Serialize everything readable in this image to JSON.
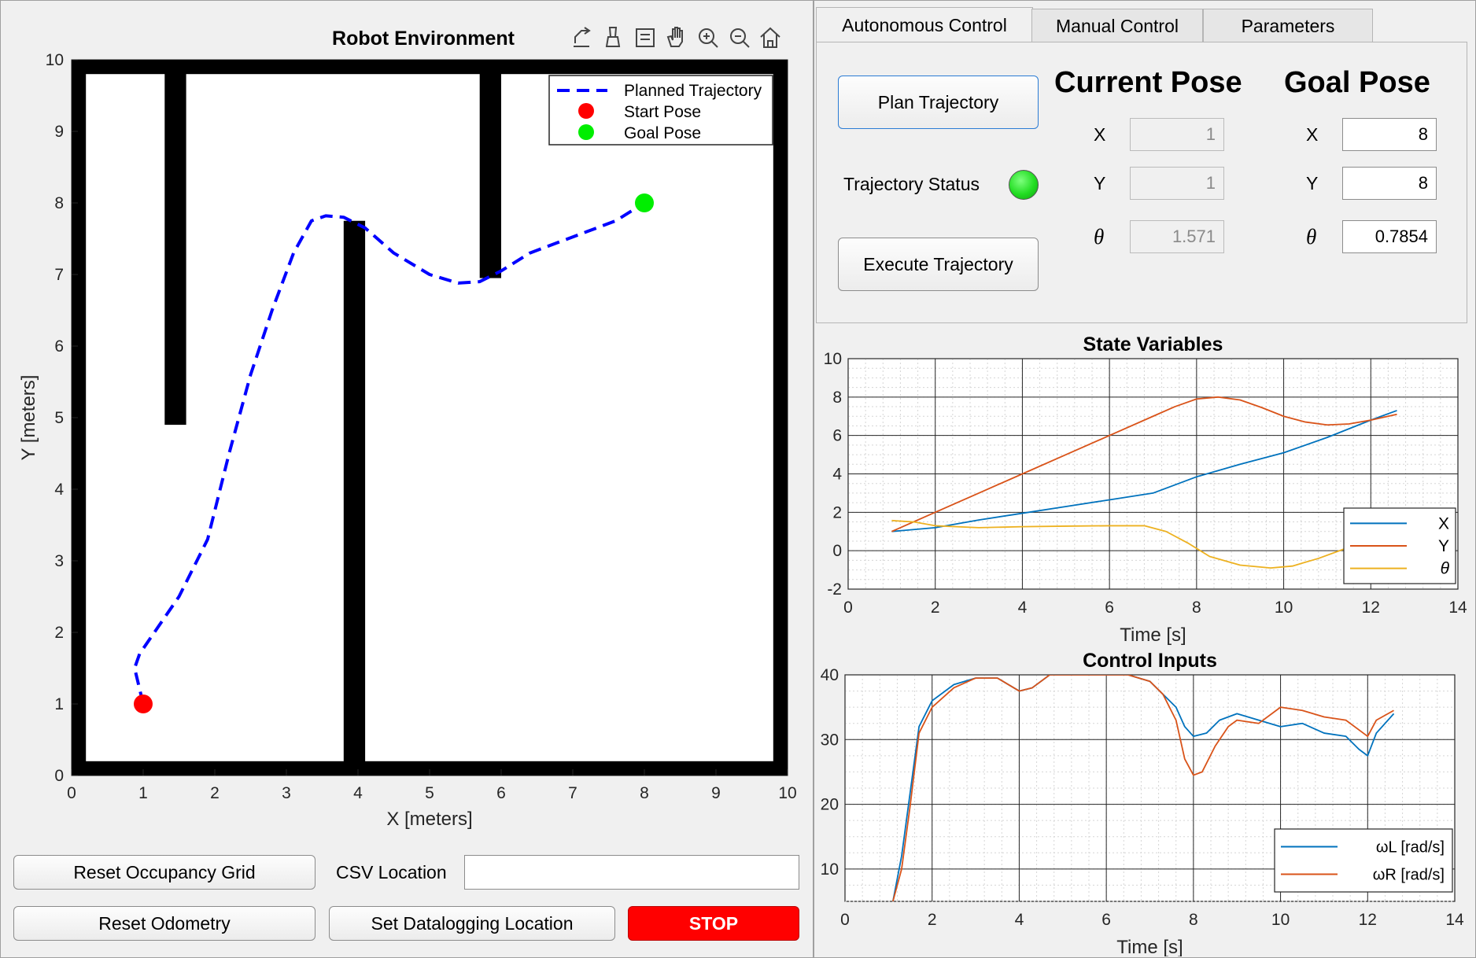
{
  "environment": {
    "title": "Robot Environment",
    "xlabel": "X [meters]",
    "ylabel": "Y [meters]",
    "legend": [
      "Planned Trajectory",
      "Start Pose",
      "Goal Pose"
    ],
    "toolbar_icons": [
      "export-icon",
      "brush-icon",
      "data-tips-icon",
      "pan-icon",
      "zoom-in-icon",
      "zoom-out-icon",
      "home-icon"
    ]
  },
  "left_controls": {
    "reset_grid": "Reset Occupancy Grid",
    "csv_label": "CSV Location",
    "csv_value": "",
    "reset_odometry": "Reset Odometry",
    "set_datalogging": "Set Datalogging Location",
    "stop": "STOP"
  },
  "tabs": [
    "Autonomous Control",
    "Manual Control",
    "Parameters"
  ],
  "autonomous": {
    "plan_button": "Plan Trajectory",
    "execute_button": "Execute Trajectory",
    "status_label": "Trajectory Status",
    "status_color": "#22dd22",
    "current_heading": "Current Pose",
    "goal_heading": "Goal Pose",
    "labels": {
      "x": "X",
      "y": "Y",
      "theta": "θ"
    },
    "current": {
      "x": "1",
      "y": "1",
      "theta": "1.571"
    },
    "goal": {
      "x": "8",
      "y": "8",
      "theta": "0.7854"
    }
  },
  "chart_data": [
    {
      "type": "line",
      "title": "Robot Environment",
      "xlabel": "X [meters]",
      "ylabel": "Y [meters]",
      "xlim": [
        0,
        10
      ],
      "ylim": [
        0,
        10
      ],
      "xticks": [
        "0",
        "1",
        "2",
        "3",
        "4",
        "5",
        "6",
        "7",
        "8",
        "9",
        "10"
      ],
      "yticks": [
        "0",
        "1",
        "2",
        "3",
        "4",
        "5",
        "6",
        "7",
        "8",
        "9",
        "10"
      ],
      "legend_position": "top-right",
      "obstacles": [
        {
          "x": [
            0,
            10
          ],
          "y": [
            9.8,
            10
          ]
        },
        {
          "x": [
            0,
            10
          ],
          "y": [
            0,
            0.2
          ]
        },
        {
          "x": [
            0,
            0.2
          ],
          "y": [
            0,
            10
          ]
        },
        {
          "x": [
            9.8,
            10
          ],
          "y": [
            0,
            10
          ]
        },
        {
          "x": [
            1.3,
            1.6
          ],
          "y": [
            4.9,
            10
          ]
        },
        {
          "x": [
            3.8,
            4.1
          ],
          "y": [
            0,
            7.75
          ]
        },
        {
          "x": [
            5.7,
            6.0
          ],
          "y": [
            6.95,
            10
          ]
        }
      ],
      "series": [
        {
          "name": "Planned Trajectory",
          "color": "#0000ff",
          "x": [
            1.0,
            0.88,
            0.95,
            1.5,
            1.9,
            2.2,
            2.5,
            2.8,
            3.1,
            3.35,
            3.55,
            3.8,
            4.1,
            4.5,
            5.0,
            5.4,
            5.7,
            6.0,
            6.4,
            6.8,
            7.2,
            7.6,
            8.0
          ],
          "y": [
            1.0,
            1.5,
            1.7,
            2.5,
            3.3,
            4.5,
            5.6,
            6.5,
            7.3,
            7.75,
            7.82,
            7.8,
            7.65,
            7.3,
            7.0,
            6.88,
            6.9,
            7.05,
            7.3,
            7.45,
            7.6,
            7.75,
            8.0
          ]
        },
        {
          "name": "Start Pose",
          "color": "#ff0000",
          "x": [
            1.0
          ],
          "y": [
            1.0
          ]
        },
        {
          "name": "Goal Pose",
          "color": "#00ee00",
          "x": [
            8.0
          ],
          "y": [
            8.0
          ]
        }
      ]
    },
    {
      "type": "line",
      "title": "State Variables",
      "xlabel": "Time [s]",
      "ylabel": "",
      "xlim": [
        0,
        14
      ],
      "ylim": [
        -2,
        10
      ],
      "xticks": [
        "0",
        "2",
        "4",
        "6",
        "8",
        "10",
        "12",
        "14"
      ],
      "yticks": [
        "-2",
        "0",
        "2",
        "4",
        "6",
        "8",
        "10"
      ],
      "grid": true,
      "legend_position": "bottom-right",
      "series": [
        {
          "name": "X",
          "color": "#0072bd",
          "x": [
            1.0,
            2.0,
            3.0,
            4.0,
            5.0,
            6.0,
            7.0,
            8.0,
            9.0,
            10.0,
            11.0,
            12.0,
            12.6
          ],
          "y": [
            1.0,
            1.2,
            1.6,
            1.95,
            2.3,
            2.65,
            3.0,
            3.85,
            4.5,
            5.1,
            5.9,
            6.8,
            7.3
          ]
        },
        {
          "name": "Y",
          "color": "#d95319",
          "x": [
            1.0,
            2.0,
            3.0,
            4.0,
            5.0,
            6.0,
            7.0,
            7.5,
            8.0,
            8.5,
            9.0,
            9.5,
            10.0,
            10.5,
            11.0,
            11.5,
            12.0,
            12.6
          ],
          "y": [
            1.0,
            2.0,
            3.0,
            4.0,
            5.0,
            6.0,
            7.0,
            7.5,
            7.9,
            8.0,
            7.85,
            7.45,
            7.0,
            6.7,
            6.55,
            6.6,
            6.8,
            7.1
          ]
        },
        {
          "name": "θ",
          "color": "#edb120",
          "x": [
            1.0,
            1.5,
            2.0,
            3.0,
            4.0,
            5.0,
            6.0,
            6.8,
            7.3,
            7.8,
            8.3,
            9.0,
            9.7,
            10.2,
            10.8,
            11.4,
            12.0,
            12.6
          ],
          "y": [
            1.57,
            1.5,
            1.3,
            1.2,
            1.25,
            1.28,
            1.3,
            1.3,
            1.0,
            0.4,
            -0.3,
            -0.75,
            -0.9,
            -0.8,
            -0.4,
            0.1,
            0.4,
            0.6
          ]
        }
      ]
    },
    {
      "type": "line",
      "title": "Control Inputs",
      "xlabel": "Time [s]",
      "ylabel": "",
      "xlim": [
        0,
        14
      ],
      "ylim": [
        5,
        40
      ],
      "xticks": [
        "0",
        "2",
        "4",
        "6",
        "8",
        "10",
        "12",
        "14"
      ],
      "yticks": [
        "10",
        "20",
        "30",
        "40"
      ],
      "grid": true,
      "legend_position": "bottom-right",
      "series": [
        {
          "name": "ωL [rad/s]",
          "color": "#0072bd",
          "x": [
            1.1,
            1.3,
            1.5,
            1.7,
            2.0,
            2.5,
            3.0,
            3.5,
            4.0,
            4.3,
            4.7,
            5.0,
            5.5,
            6.0,
            6.5,
            7.0,
            7.3,
            7.6,
            7.8,
            8.0,
            8.3,
            8.6,
            9.0,
            9.5,
            10.0,
            10.5,
            11.0,
            11.5,
            11.8,
            12.0,
            12.2,
            12.6
          ],
          "y": [
            5,
            12,
            22,
            32,
            36,
            38.5,
            39.5,
            39.5,
            37.5,
            38,
            40,
            40,
            40,
            40,
            40,
            39,
            37,
            35,
            32,
            30.5,
            31,
            33,
            34,
            33,
            32,
            32.5,
            31,
            30.5,
            28.5,
            27.5,
            31,
            34
          ]
        },
        {
          "name": "ωR [rad/s]",
          "color": "#d95319",
          "x": [
            1.1,
            1.3,
            1.5,
            1.7,
            2.0,
            2.5,
            3.0,
            3.5,
            4.0,
            4.3,
            4.7,
            5.0,
            5.5,
            6.0,
            6.5,
            7.0,
            7.3,
            7.6,
            7.8,
            8.0,
            8.2,
            8.5,
            8.8,
            9.0,
            9.5,
            10.0,
            10.5,
            11.0,
            11.5,
            11.8,
            12.0,
            12.2,
            12.6
          ],
          "y": [
            5,
            10,
            20,
            31,
            35,
            38,
            39.5,
            39.5,
            37.5,
            38,
            40,
            40,
            40,
            40,
            40,
            39,
            37,
            33,
            27,
            24.5,
            25,
            29,
            32,
            33,
            32.5,
            35,
            34.5,
            33.5,
            33,
            31.5,
            30.5,
            33,
            34.5
          ]
        }
      ]
    }
  ]
}
